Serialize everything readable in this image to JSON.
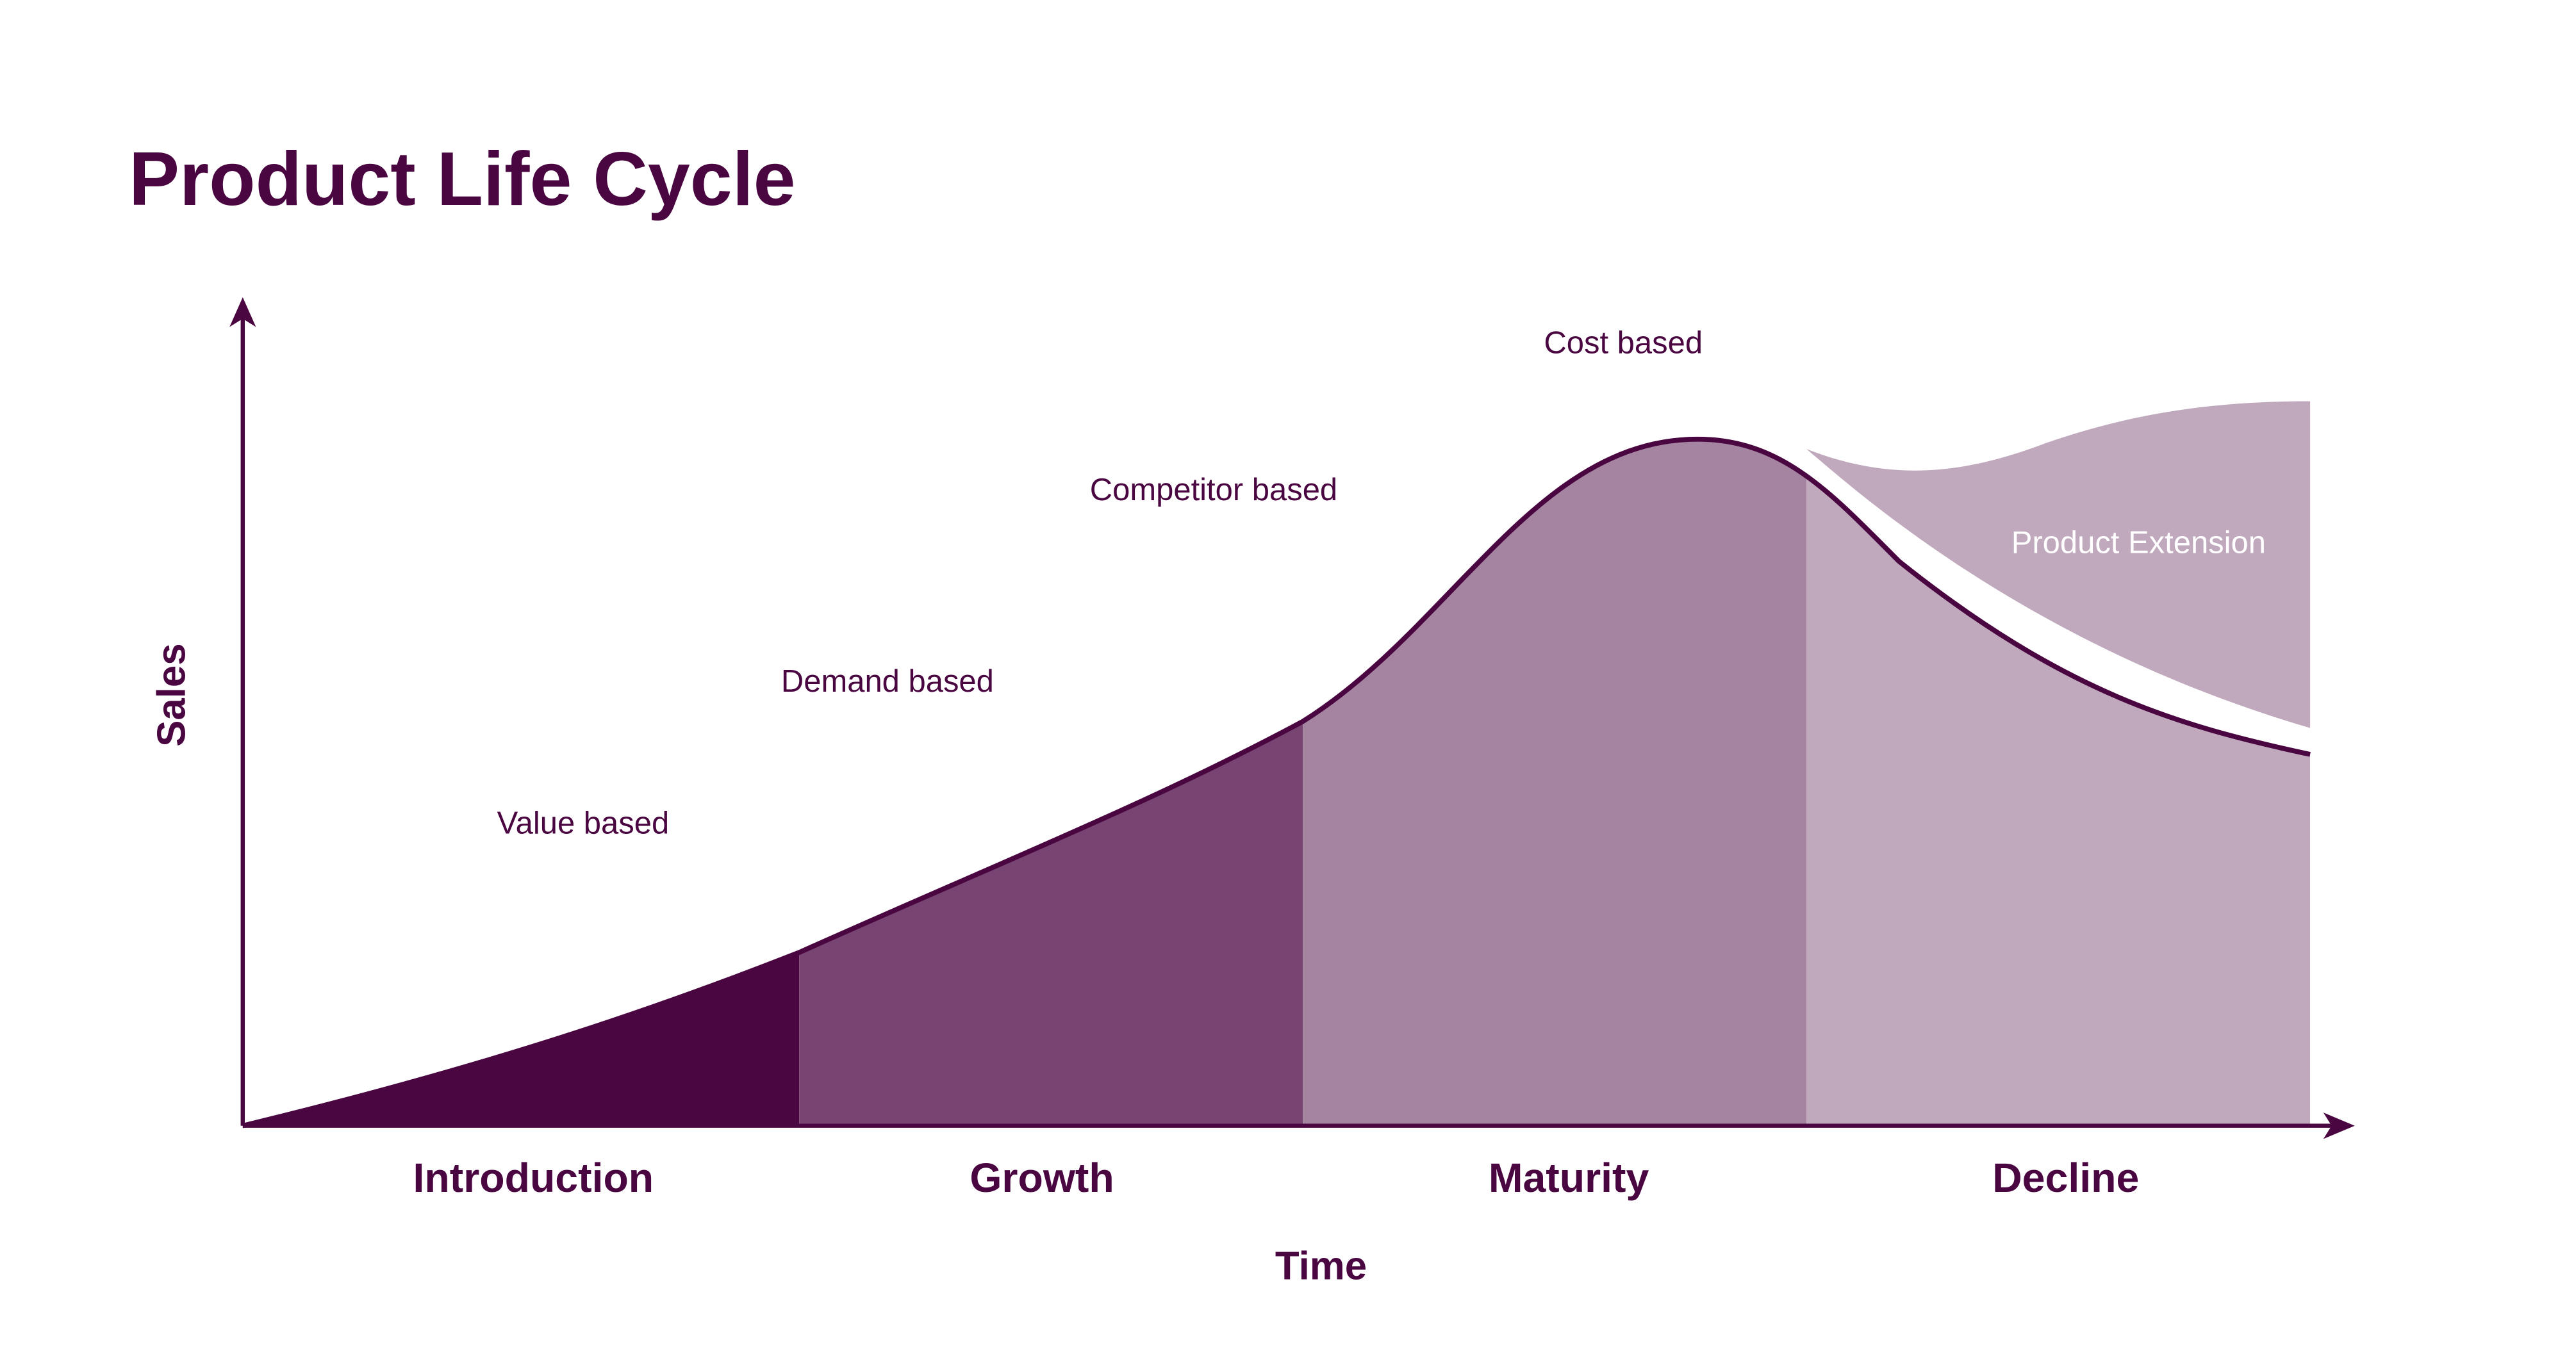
{
  "chart_data": {
    "type": "area",
    "title": "Product Life Cycle",
    "xlabel": "Time",
    "ylabel": "Sales",
    "grid": false,
    "categories": [
      "Introduction",
      "Growth",
      "Maturity",
      "Decline"
    ],
    "annotations": [
      "Value based",
      "Demand based",
      "Competitor based",
      "Cost based"
    ],
    "extension_label": "Product Extension",
    "curve": {
      "x": [
        0,
        1,
        2,
        3,
        4
      ],
      "y": [
        0,
        0.25,
        0.59,
        0.99,
        0.54
      ],
      "peak": {
        "x": 2.78,
        "y": 1.0
      }
    },
    "extension": {
      "start_y": 0.98,
      "end_y_top": 1.06,
      "end_y_bottom": 0.58
    },
    "colors": {
      "text": "#4a0640",
      "introduction": "#4a0640",
      "growth": "#784573",
      "maturity": "#a584a2",
      "decline": "#c0a8bd",
      "extension": "#c0a8bd",
      "extension_label": "#ffffff"
    }
  }
}
